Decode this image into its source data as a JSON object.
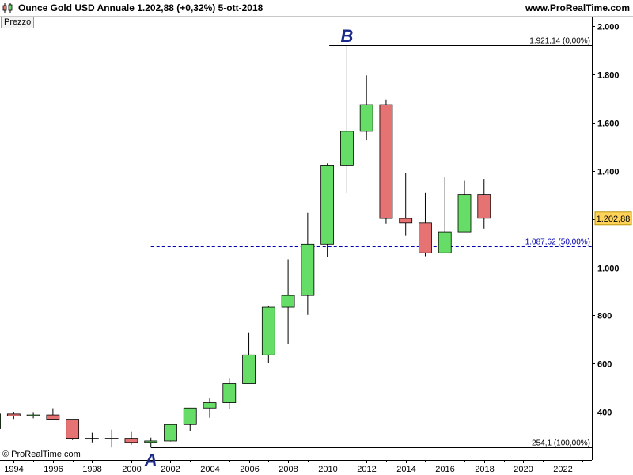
{
  "header": {
    "title": "Ounce Gold USD   Annuale   1.202,88 (+0,32%)   5-ott-2018",
    "site": "www.ProRealTime.com"
  },
  "panel_label": "Prezzo",
  "copyright": "© ProRealTime.com",
  "chart_data": {
    "type": "candlestick",
    "x_ticks": [
      "1994",
      "1996",
      "1998",
      "2000",
      "2002",
      "2004",
      "2006",
      "2008",
      "2010",
      "2012",
      "2014",
      "2016",
      "2018",
      "2020",
      "2022"
    ],
    "y_ticks": [
      "400",
      "600",
      "800",
      "1.000",
      "1.200",
      "1.400",
      "1.600",
      "1.800",
      "2.000"
    ],
    "y_tick_values": [
      400,
      600,
      800,
      1000,
      1200,
      1400,
      1600,
      1800,
      2000
    ],
    "ylim": [
      200,
      2040
    ],
    "xlim": [
      1993.3,
      2023.5
    ],
    "candles": [
      {
        "year": 1993,
        "open": 330,
        "high": 406,
        "low": 326,
        "close": 391
      },
      {
        "year": 1994,
        "open": 391,
        "high": 397,
        "low": 370,
        "close": 383
      },
      {
        "year": 1995,
        "open": 383,
        "high": 396,
        "low": 373,
        "close": 387
      },
      {
        "year": 1996,
        "open": 387,
        "high": 415,
        "low": 367,
        "close": 369
      },
      {
        "year": 1997,
        "open": 369,
        "high": 368,
        "low": 283,
        "close": 290
      },
      {
        "year": 1998,
        "open": 290,
        "high": 313,
        "low": 273,
        "close": 288
      },
      {
        "year": 1999,
        "open": 288,
        "high": 326,
        "low": 252,
        "close": 290
      },
      {
        "year": 2000,
        "open": 290,
        "high": 316,
        "low": 264,
        "close": 273
      },
      {
        "year": 2001,
        "open": 273,
        "high": 293,
        "low": 254.1,
        "close": 279
      },
      {
        "year": 2002,
        "open": 279,
        "high": 350,
        "low": 277,
        "close": 347
      },
      {
        "year": 2003,
        "open": 347,
        "high": 417,
        "low": 320,
        "close": 416
      },
      {
        "year": 2004,
        "open": 416,
        "high": 456,
        "low": 375,
        "close": 438
      },
      {
        "year": 2005,
        "open": 438,
        "high": 538,
        "low": 411,
        "close": 517
      },
      {
        "year": 2006,
        "open": 517,
        "high": 730,
        "low": 520,
        "close": 636
      },
      {
        "year": 2007,
        "open": 636,
        "high": 841,
        "low": 602,
        "close": 834
      },
      {
        "year": 2008,
        "open": 834,
        "high": 1033,
        "low": 681,
        "close": 883
      },
      {
        "year": 2009,
        "open": 883,
        "high": 1226,
        "low": 802,
        "close": 1096
      },
      {
        "year": 2010,
        "open": 1096,
        "high": 1431,
        "low": 1044,
        "close": 1421
      },
      {
        "year": 2011,
        "open": 1421,
        "high": 1921.14,
        "low": 1307,
        "close": 1564
      },
      {
        "year": 2012,
        "open": 1564,
        "high": 1796,
        "low": 1527,
        "close": 1675
      },
      {
        "year": 2013,
        "open": 1675,
        "high": 1696,
        "low": 1180,
        "close": 1202
      },
      {
        "year": 2014,
        "open": 1202,
        "high": 1392,
        "low": 1131,
        "close": 1183
      },
      {
        "year": 2015,
        "open": 1183,
        "high": 1308,
        "low": 1046,
        "close": 1060
      },
      {
        "year": 2016,
        "open": 1060,
        "high": 1375,
        "low": 1061,
        "close": 1146
      },
      {
        "year": 2017,
        "open": 1146,
        "high": 1358,
        "low": 1148,
        "close": 1302
      },
      {
        "year": 2018,
        "open": 1302,
        "high": 1366,
        "low": 1160,
        "close": 1202.88
      }
    ],
    "colors": {
      "up": "#66dd66",
      "down": "#e57373",
      "outline": "#000000",
      "retracement": "#0000b0"
    },
    "annotations": {
      "level_high": {
        "value": 1921.14,
        "label": "1.921,14 (0,00%)"
      },
      "level_mid": {
        "value": 1087.62,
        "label": "1.087,62 (50,00%)"
      },
      "level_low": {
        "value": 254.1,
        "label": "254,1 (100,00%)"
      },
      "point_b": {
        "label": "B",
        "year": 2011,
        "value": 1921.14
      },
      "point_a": {
        "label": "A",
        "year": 2001,
        "value": 254.1
      }
    },
    "last_price": {
      "value": 1202.88,
      "label": "1.202,88"
    }
  }
}
